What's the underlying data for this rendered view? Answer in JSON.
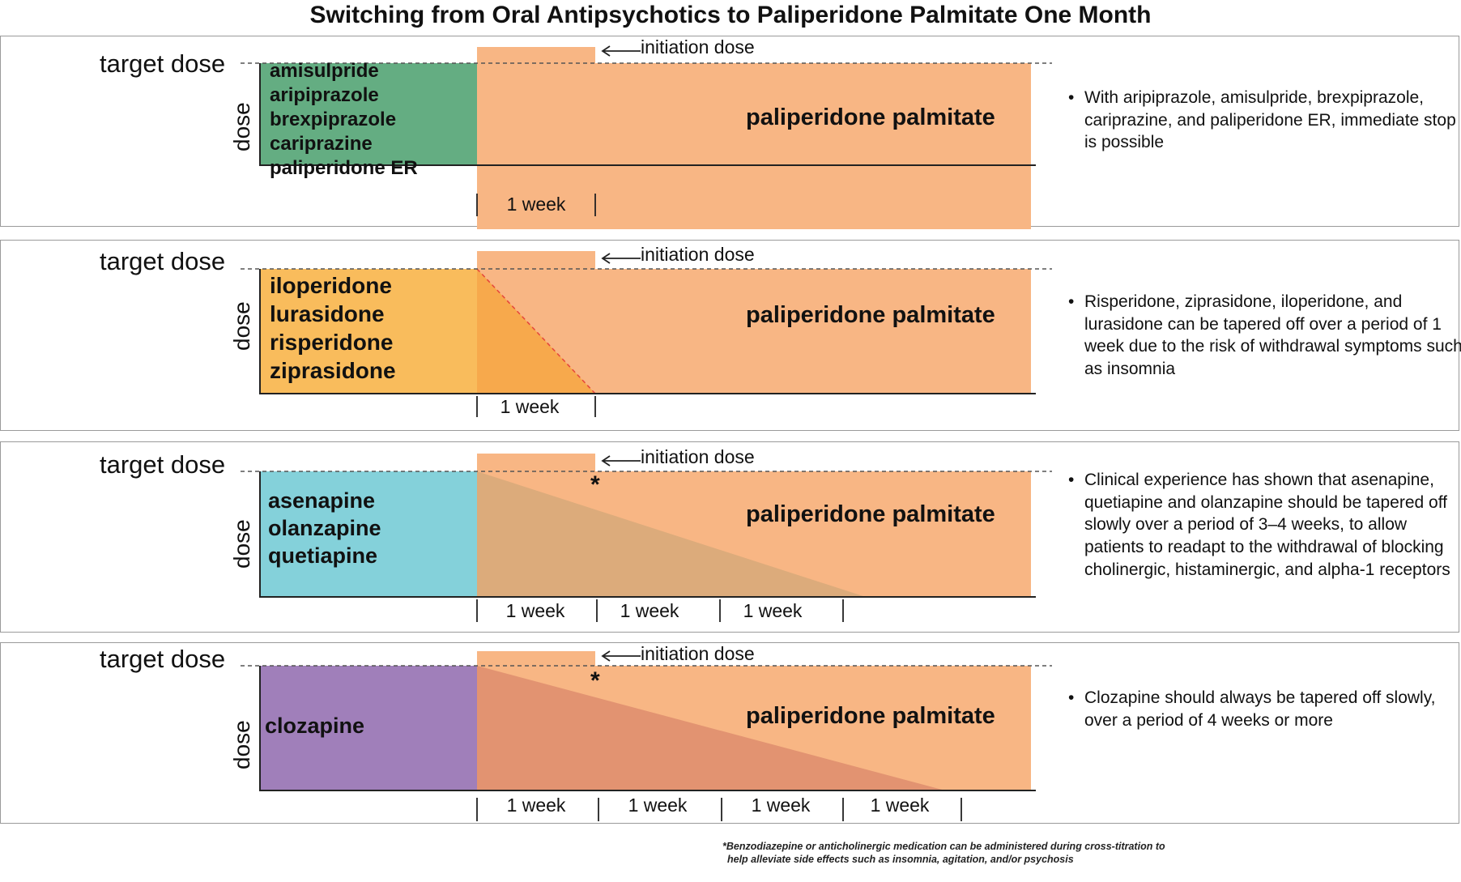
{
  "title": "Switching from Oral Antipsychotics to Paliperidone Palmitate One Month",
  "labels": {
    "target_dose": "target dose",
    "dose": "dose",
    "initiation_dose": "initiation dose",
    "paliperidone": "paliperidone palmitate",
    "week": "1 week",
    "asterisk": "*"
  },
  "colors": {
    "paliperidone": "#F8B684",
    "green": "#64AD82",
    "orange": "#F9BC5C",
    "teal": "#84D1DA",
    "purple": "#A07FBA"
  },
  "panels": [
    {
      "drugs": [
        "amisulpride",
        "aripiprazole",
        "brexpiprazole",
        "cariprazine",
        "paliperidone ER"
      ],
      "taper_weeks": 0,
      "note": "With aripiprazole, amisulpride, brexpiprazole, cariprazine, and paliperidone ER, immediate stop is possible"
    },
    {
      "drugs": [
        "iloperidone",
        "lurasidone",
        "risperidone",
        "ziprasidone"
      ],
      "taper_weeks": 1,
      "note": "Risperidone, ziprasidone, iloperidone, and lurasidone can be tapered off over a period of 1 week due to the risk of withdrawal symptoms such as insomnia"
    },
    {
      "drugs": [
        "asenapine",
        "olanzapine",
        "quetiapine"
      ],
      "taper_weeks": 3,
      "note": "Clinical experience has shown that asenapine, quetiapine and olanzapine should be tapered off slowly over a period of 3–4 weeks, to allow patients to readapt to the withdrawal of blocking cholinergic, histaminergic, and alpha-1 receptors"
    },
    {
      "drugs": [
        "clozapine"
      ],
      "taper_weeks": 4,
      "note": "Clozapine should always be tapered off slowly, over a period of 4 weeks or more"
    }
  ],
  "footnote": {
    "line1": "*Benzodiazepine or anticholinergic medication can be administered during cross-titration to",
    "line2": "help alleviate side effects such as insomnia, agitation, and/or psychosis"
  }
}
